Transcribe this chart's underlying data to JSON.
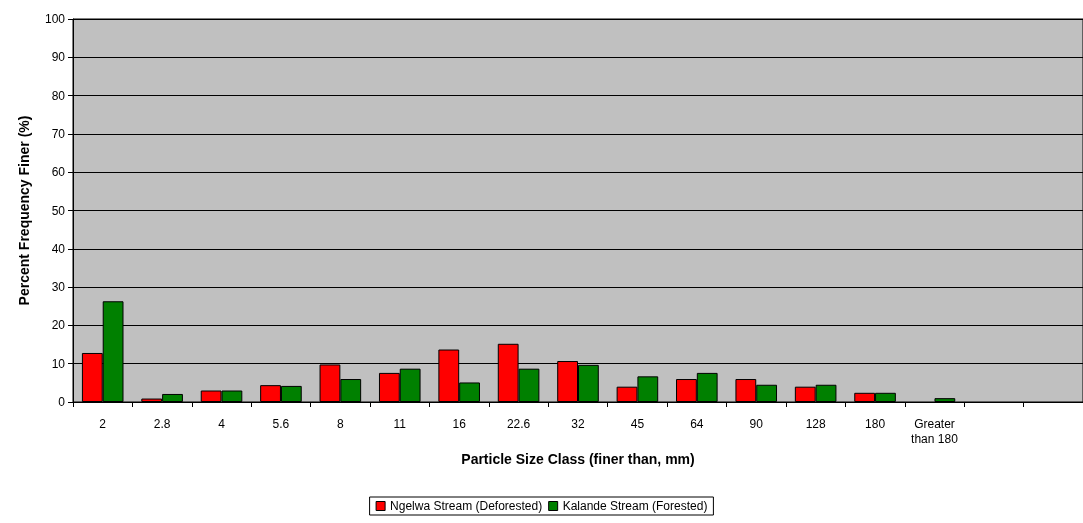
{
  "chart_data": {
    "type": "bar",
    "xlabel": "Particle Size Class (finer than, mm)",
    "ylabel": "Percent Frequency Finer (%)",
    "categories": [
      "2",
      "2.8",
      "4",
      "5.6",
      "8",
      "11",
      "16",
      "22.6",
      "32",
      "45",
      "64",
      "90",
      "128",
      "180",
      "Greater than 180",
      null,
      null
    ],
    "series": [
      {
        "name": "Ngelwa Stream (Deforested)",
        "color": "#ff0000",
        "values": [
          12.8,
          0.9,
          3.0,
          4.4,
          9.8,
          7.6,
          13.7,
          15.2,
          10.7,
          4.0,
          6.0,
          6.0,
          4.0,
          2.4,
          0,
          null,
          null
        ]
      },
      {
        "name": "Kalande Stream (Forested)",
        "color": "#008000",
        "values": [
          26.3,
          2.1,
          3.0,
          4.2,
          6.0,
          8.7,
          5.1,
          8.7,
          9.7,
          6.7,
          7.6,
          4.5,
          4.5,
          2.4,
          1.0,
          null,
          null
        ]
      }
    ],
    "ylim": [
      0,
      100
    ],
    "yticks": [
      0,
      10,
      20,
      30,
      40,
      50,
      60,
      70,
      80,
      90,
      100
    ],
    "grid": "y",
    "legend": "bottom"
  }
}
